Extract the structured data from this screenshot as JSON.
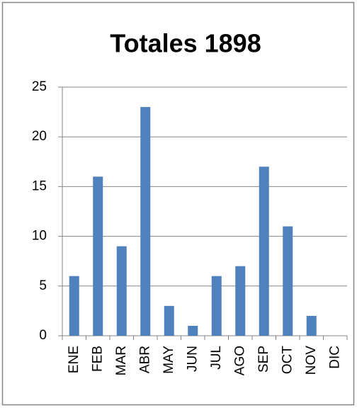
{
  "chart_data": {
    "type": "bar",
    "title": "Totales 1898",
    "categories": [
      "ENE",
      "FEB",
      "MAR",
      "ABR",
      "MAY",
      "JUN",
      "JUL",
      "AGO",
      "SEP",
      "OCT",
      "NOV",
      "DIC"
    ],
    "values": [
      6,
      16,
      9,
      23,
      3,
      1,
      6,
      7,
      17,
      11,
      2,
      0
    ],
    "color": "#4f81bd",
    "ylim": [
      0,
      25
    ],
    "yticks": [
      0,
      5,
      10,
      15,
      20,
      25
    ],
    "grid": true
  }
}
